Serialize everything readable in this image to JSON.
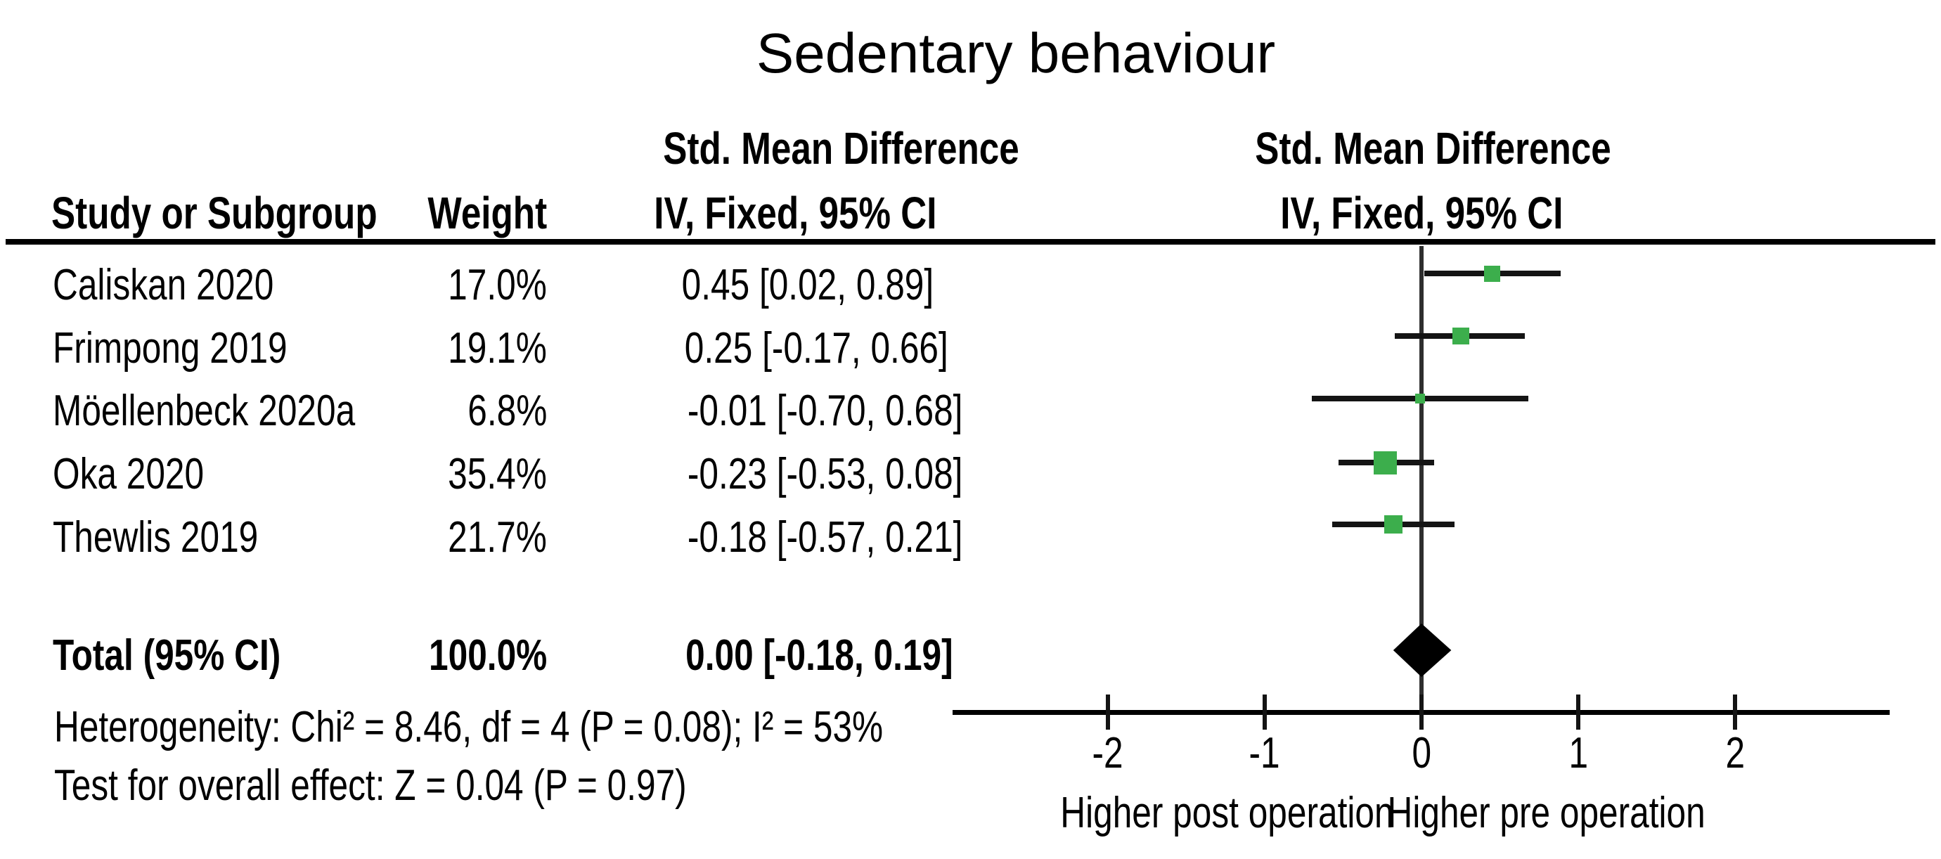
{
  "title": "Sedentary behaviour",
  "table_header": {
    "col_study": "Study or Subgroup",
    "col_weight": "Weight",
    "stat_col_line1": "Std. Mean Difference",
    "stat_col_line2": "IV, Fixed, 95% CI",
    "plot_col_line1": "Std. Mean Difference",
    "plot_col_line2": "IV, Fixed, 95% CI"
  },
  "chart_data": {
    "type": "forest",
    "effect_measure": "Std. Mean Difference",
    "model": "IV, Fixed, 95% CI",
    "studies": [
      {
        "name": "Caliskan 2020",
        "weight_label": "17.0%",
        "weight": 17.0,
        "estimate": 0.45,
        "ci_lower": 0.02,
        "ci_upper": 0.89,
        "stat_label": "0.45 [0.02, 0.89]"
      },
      {
        "name": "Frimpong 2019",
        "weight_label": "19.1%",
        "weight": 19.1,
        "estimate": 0.25,
        "ci_lower": -0.17,
        "ci_upper": 0.66,
        "stat_label": "0.25 [-0.17, 0.66]"
      },
      {
        "name": "Möellenbeck 2020a",
        "weight_label": "6.8%",
        "weight": 6.8,
        "estimate": -0.01,
        "ci_lower": -0.7,
        "ci_upper": 0.68,
        "stat_label": "-0.01 [-0.70, 0.68]"
      },
      {
        "name": "Oka 2020",
        "weight_label": "35.4%",
        "weight": 35.4,
        "estimate": -0.23,
        "ci_lower": -0.53,
        "ci_upper": 0.08,
        "stat_label": "-0.23 [-0.53, 0.08]"
      },
      {
        "name": "Thewlis 2019",
        "weight_label": "21.7%",
        "weight": 21.7,
        "estimate": -0.18,
        "ci_lower": -0.57,
        "ci_upper": 0.21,
        "stat_label": "-0.18 [-0.57, 0.21]"
      }
    ],
    "total": {
      "name": "Total (95% CI)",
      "weight_label": "100.0%",
      "estimate": 0.0,
      "ci_lower": -0.18,
      "ci_upper": 0.19,
      "stat_label": "0.00 [-0.18, 0.19]"
    },
    "heterogeneity": "Heterogeneity: Chi² = 8.46, df = 4 (P = 0.08); I² = 53%",
    "overall_effect": "Test for overall effect: Z = 0.04 (P = 0.97)",
    "axis": {
      "ticks": [
        -2,
        -1,
        0,
        1,
        2
      ],
      "xlim": [
        -3,
        2.95
      ],
      "label_left": "Higher post operation",
      "label_right": "Higher pre operation",
      "grid": false,
      "zero_line": 0
    },
    "colors": {
      "square": "#3CAE4C",
      "diamond": "#000000",
      "ci_line": "#141414",
      "text": "#000000"
    }
  }
}
